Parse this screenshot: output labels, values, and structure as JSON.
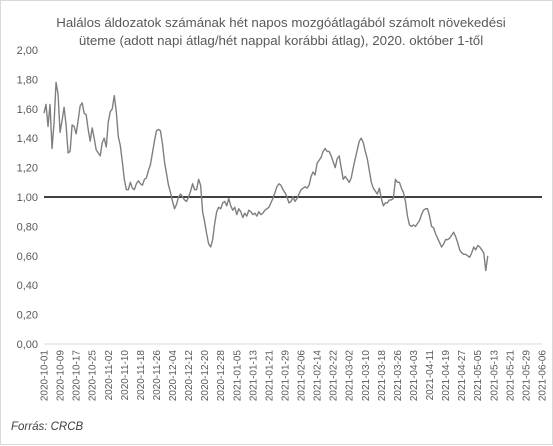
{
  "title": "Halálos áldozatok számának hét napos mozgóátlagából számolt növekedési üteme (adott napi átlag/hét nappal korábbi átlag), 2020. október 1-től",
  "source": "Forrás: CRCB",
  "colors": {
    "line": "#7f7f7f",
    "reference": "#000000",
    "gridline": "#ffffff"
  },
  "chart_data": {
    "type": "line",
    "title": "Halálos áldozatok számának hét napos mozgóátlagából számolt növekedési üteme (adott napi átlag/hét nappal korábbi átlag), 2020. október 1-től",
    "xlabel": "",
    "ylabel": "",
    "x_start": "2020-10-01",
    "x_end": "2021-06-06",
    "xlim": [
      "2020-10-01",
      "2021-06-06"
    ],
    "ylim": [
      0,
      2
    ],
    "grid": false,
    "legend": "none",
    "reference_line": 1.0,
    "x_tick_labels": [
      "2020-10-01",
      "2020-10-09",
      "2020-10-17",
      "2020-10-25",
      "2020-11-02",
      "2020-11-10",
      "2020-11-18",
      "2020-11-26",
      "2020-12-04",
      "2020-12-12",
      "2020-12-20",
      "2020-12-28",
      "2021-01-05",
      "2021-01-13",
      "2021-01-21",
      "2021-01-29",
      "2021-02-06",
      "2021-02-14",
      "2021-02-22",
      "2021-03-02",
      "2021-03-10",
      "2021-03-18",
      "2021-03-26",
      "2021-04-03",
      "2021-04-11",
      "2021-04-19",
      "2021-04-27",
      "2021-05-05",
      "2021-05-13",
      "2021-05-21",
      "2021-05-29",
      "2021-06-06"
    ],
    "y_tick_labels": [
      "0,00",
      "0,20",
      "0,40",
      "0,60",
      "0,80",
      "1,00",
      "1,20",
      "1,40",
      "1,60",
      "1,80",
      "2,00"
    ],
    "y_ticks": [
      0,
      0.2,
      0.4,
      0.6,
      0.8,
      1.0,
      1.2,
      1.4,
      1.6,
      1.8,
      2.0
    ],
    "series": [
      {
        "values": [
          1.57,
          1.63,
          1.48,
          1.63,
          1.33,
          1.5,
          1.78,
          1.7,
          1.44,
          1.52,
          1.61,
          1.49,
          1.3,
          1.31,
          1.49,
          1.48,
          1.43,
          1.52,
          1.62,
          1.64,
          1.57,
          1.56,
          1.46,
          1.38,
          1.47,
          1.4,
          1.32,
          1.3,
          1.28,
          1.37,
          1.4,
          1.34,
          1.51,
          1.58,
          1.6,
          1.69,
          1.58,
          1.41,
          1.35,
          1.24,
          1.12,
          1.05,
          1.05,
          1.1,
          1.06,
          1.05,
          1.09,
          1.11,
          1.09,
          1.08,
          1.12,
          1.13,
          1.18,
          1.22,
          1.3,
          1.38,
          1.45,
          1.46,
          1.45,
          1.36,
          1.24,
          1.16,
          1.08,
          1.03,
          0.97,
          0.92,
          0.95,
          1.0,
          1.02,
          1.0,
          0.98,
          0.97,
          1.0,
          1.04,
          1.09,
          1.05,
          1.05,
          1.12,
          1.08,
          0.9,
          0.83,
          0.75,
          0.68,
          0.66,
          0.71,
          0.82,
          0.9,
          0.93,
          0.92,
          0.96,
          0.97,
          0.94,
          0.99,
          0.94,
          0.91,
          0.93,
          0.88,
          0.92,
          0.9,
          0.86,
          0.89,
          0.87,
          0.91,
          0.9,
          0.88,
          0.89,
          0.87,
          0.9,
          0.88,
          0.89,
          0.91,
          0.92,
          0.93,
          0.96,
          0.99,
          1.03,
          1.07,
          1.09,
          1.08,
          1.05,
          1.03,
          1.0,
          0.96,
          0.97,
          1.0,
          0.97,
          0.99,
          1.02,
          1.05,
          1.06,
          1.07,
          1.06,
          1.08,
          1.14,
          1.17,
          1.15,
          1.23,
          1.25,
          1.27,
          1.31,
          1.33,
          1.31,
          1.31,
          1.28,
          1.24,
          1.2,
          1.26,
          1.28,
          1.2,
          1.12,
          1.14,
          1.12,
          1.1,
          1.13,
          1.2,
          1.26,
          1.32,
          1.38,
          1.4,
          1.37,
          1.31,
          1.26,
          1.18,
          1.1,
          1.06,
          1.04,
          1.02,
          1.06,
          0.99,
          0.94,
          0.96,
          0.96,
          0.98,
          0.98,
          0.99,
          1.12,
          1.1,
          1.1,
          1.06,
          1.03,
          0.97,
          0.87,
          0.81,
          0.8,
          0.81,
          0.8,
          0.82,
          0.84,
          0.88,
          0.91,
          0.92,
          0.92,
          0.87,
          0.8,
          0.79,
          0.75,
          0.72,
          0.69,
          0.66,
          0.68,
          0.71,
          0.71,
          0.72,
          0.74,
          0.76,
          0.73,
          0.69,
          0.64,
          0.62,
          0.61,
          0.61,
          0.6,
          0.59,
          0.62,
          0.66,
          0.64,
          0.67,
          0.66,
          0.64,
          0.62,
          0.5,
          0.6
        ]
      }
    ]
  }
}
